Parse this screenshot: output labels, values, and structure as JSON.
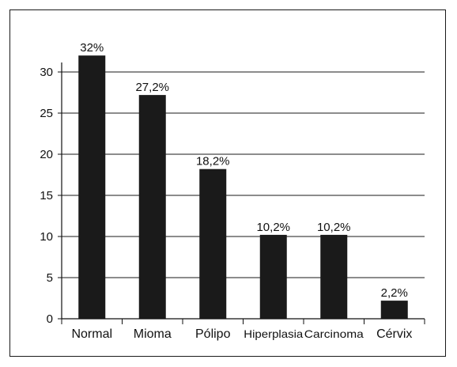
{
  "chart_data": {
    "type": "bar",
    "title": "",
    "xlabel": "",
    "ylabel": "",
    "categories": [
      "Normal",
      "Mioma",
      "Pólipo",
      "Hiperplasia",
      "Carcinoma",
      "Cérvix"
    ],
    "values": [
      32,
      27.2,
      18.2,
      10.2,
      10.2,
      2.2
    ],
    "data_labels": [
      "32%",
      "27,2%",
      "18,2%",
      "10,2%",
      "10,2%",
      "2,2%"
    ],
    "ylim": [
      0,
      30
    ],
    "yticks": [
      0,
      5,
      10,
      15,
      20,
      25,
      30
    ],
    "grid": "horizontal",
    "legend": "none",
    "colors": {
      "bar": "#1a1a1a",
      "grid": "#1a1a1a"
    }
  }
}
